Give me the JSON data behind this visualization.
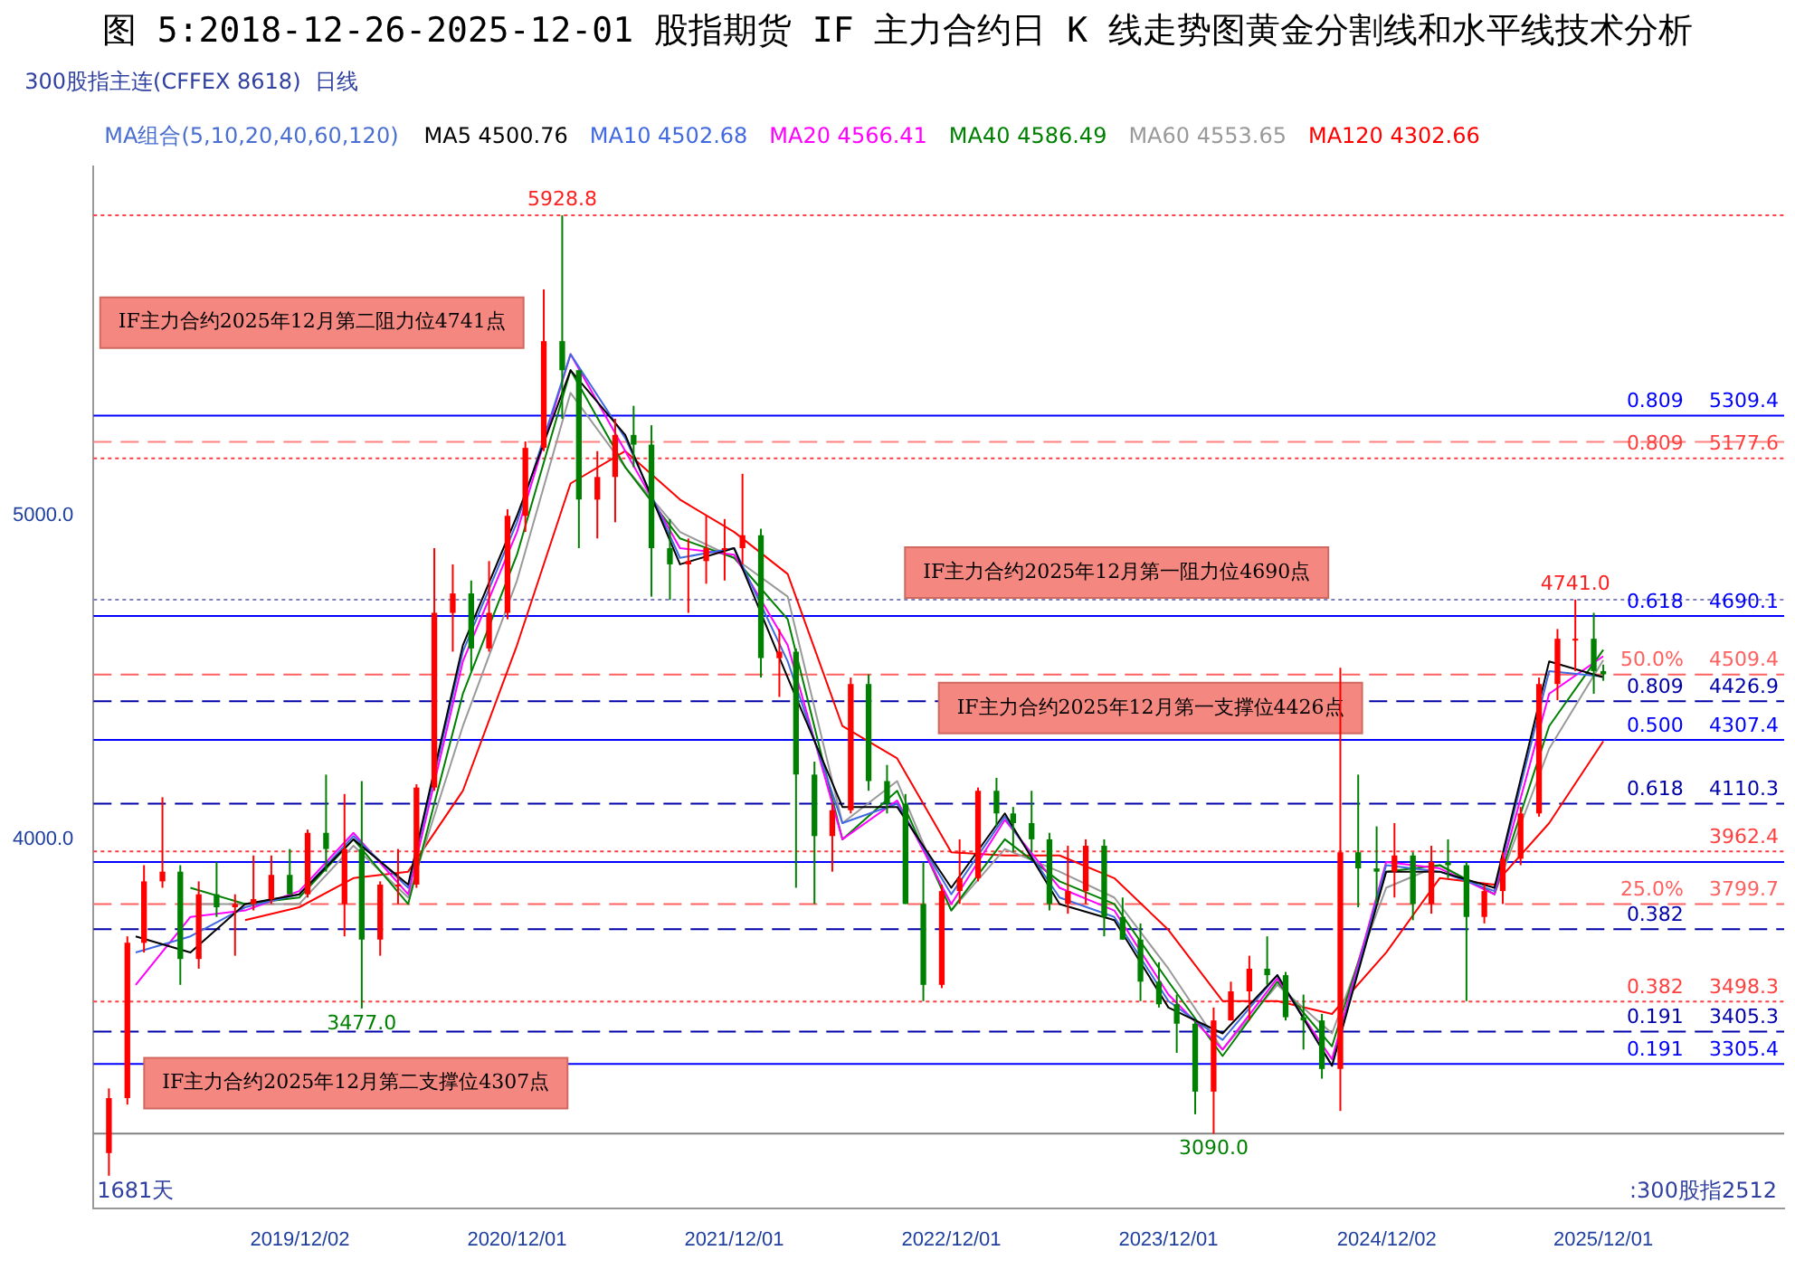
{
  "chart_data": {
    "type": "candlestick",
    "title": "图 5:2018-12-26-2025-12-01 股指期货 IF 主力合约日 K 线走势图黄金分割线和水平线技术分析",
    "legend_title": "MA组合(5,10,20,40,60,120)",
    "legend": "top",
    "marker": "none",
    "x": [
      "2019-01-15",
      "2019-02-15",
      "2019-03-15",
      "2019-04-15",
      "2019-05-15",
      "2019-06-15",
      "2019-07-15",
      "2019-08-15",
      "2019-09-15",
      "2019-10-15",
      "2019-11-15",
      "2019-12-15",
      "2020-01-15",
      "2020-02-15",
      "2020-03-15",
      "2020-04-15",
      "2020-05-15",
      "2020-06-15",
      "2020-07-15",
      "2020-08-15",
      "2020-09-15",
      "2020-10-15",
      "2020-11-15",
      "2020-12-15",
      "2021-01-15",
      "2021-02-15",
      "2021-03-15",
      "2021-04-15",
      "2021-05-15",
      "2021-06-15",
      "2021-07-15",
      "2021-08-15",
      "2021-09-15",
      "2021-10-15",
      "2021-11-15",
      "2021-12-15",
      "2022-01-15",
      "2022-02-15",
      "2022-03-15",
      "2022-04-15",
      "2022-05-15",
      "2022-06-15",
      "2022-07-15",
      "2022-08-15",
      "2022-09-15",
      "2022-10-15",
      "2022-11-15",
      "2022-12-15",
      "2023-01-15",
      "2023-02-15",
      "2023-03-15",
      "2023-04-15",
      "2023-05-15",
      "2023-06-15",
      "2023-07-15",
      "2023-08-15",
      "2023-09-15",
      "2023-10-15",
      "2023-11-15",
      "2023-12-15",
      "2024-01-15",
      "2024-02-15",
      "2024-03-15",
      "2024-04-15",
      "2024-05-15",
      "2024-06-15",
      "2024-07-15",
      "2024-08-15",
      "2024-09-15",
      "2024-10-15",
      "2024-11-15",
      "2024-12-15",
      "2025-01-15",
      "2025-02-15",
      "2025-03-15",
      "2025-04-15",
      "2025-05-15",
      "2025-06-15",
      "2025-07-15",
      "2025-08-15",
      "2025-09-15",
      "2025-10-15",
      "2025-11-15",
      "2025-12-01"
    ],
    "ohlc": [
      [
        3030,
        3230,
        2960,
        3200
      ],
      [
        3200,
        3700,
        3180,
        3680
      ],
      [
        3680,
        3920,
        3650,
        3870
      ],
      [
        3870,
        4130,
        3850,
        3900
      ],
      [
        3900,
        3920,
        3550,
        3630
      ],
      [
        3630,
        3870,
        3600,
        3830
      ],
      [
        3830,
        3930,
        3760,
        3790
      ],
      [
        3790,
        3830,
        3640,
        3800
      ],
      [
        3800,
        3950,
        3780,
        3815
      ],
      [
        3815,
        3950,
        3800,
        3890
      ],
      [
        3890,
        3970,
        3830,
        3830
      ],
      [
        3830,
        4030,
        3820,
        4020
      ],
      [
        4020,
        4200,
        3900,
        3970
      ],
      [
        3800,
        4140,
        3700,
        3970
      ],
      [
        3970,
        4180,
        3477,
        3690
      ],
      [
        3690,
        3870,
        3640,
        3860
      ],
      [
        3860,
        3970,
        3800,
        3860
      ],
      [
        3860,
        4170,
        3850,
        4160
      ],
      [
        4160,
        4900,
        4150,
        4700
      ],
      [
        4700,
        4850,
        4580,
        4760
      ],
      [
        4760,
        4800,
        4520,
        4590
      ],
      [
        4590,
        4860,
        4580,
        4700
      ],
      [
        4700,
        5020,
        4680,
        5000
      ],
      [
        5000,
        5230,
        4950,
        5210
      ],
      [
        5210,
        5700,
        5200,
        5540
      ],
      [
        5540,
        5928.8,
        5300,
        5450
      ],
      [
        5450,
        5450,
        4900,
        5050
      ],
      [
        5050,
        5200,
        4930,
        5120
      ],
      [
        5120,
        5300,
        4980,
        5250
      ],
      [
        5250,
        5340,
        5150,
        5220
      ],
      [
        5220,
        5280,
        4750,
        4900
      ],
      [
        4900,
        4990,
        4740,
        4850
      ],
      [
        4850,
        4930,
        4700,
        4860
      ],
      [
        4860,
        5000,
        4790,
        4900
      ],
      [
        4900,
        4990,
        4800,
        4900
      ],
      [
        4900,
        5130,
        4850,
        4940
      ],
      [
        4940,
        4960,
        4500,
        4560
      ],
      [
        4560,
        4650,
        4440,
        4580
      ],
      [
        4580,
        4590,
        3850,
        4200
      ],
      [
        4200,
        4240,
        3800,
        4010
      ],
      [
        4010,
        4110,
        3900,
        4090
      ],
      [
        4090,
        4500,
        4080,
        4480
      ],
      [
        4480,
        4510,
        4150,
        4180
      ],
      [
        4180,
        4230,
        4080,
        4110
      ],
      [
        4110,
        4140,
        3800,
        3800
      ],
      [
        3800,
        3930,
        3500,
        3550
      ],
      [
        3550,
        3860,
        3540,
        3840
      ],
      [
        3840,
        4000,
        3800,
        3880
      ],
      [
        3880,
        4160,
        3870,
        4150
      ],
      [
        4150,
        4190,
        4040,
        4080
      ],
      [
        4080,
        4100,
        3960,
        4050
      ],
      [
        4050,
        4150,
        3960,
        4000
      ],
      [
        4000,
        4020,
        3780,
        3800
      ],
      [
        3800,
        3980,
        3770,
        3840
      ],
      [
        3840,
        4000,
        3800,
        3980
      ],
      [
        3980,
        4000,
        3700,
        3760
      ],
      [
        3760,
        3820,
        3690,
        3690
      ],
      [
        3690,
        3740,
        3500,
        3560
      ],
      [
        3560,
        3620,
        3480,
        3490
      ],
      [
        3490,
        3520,
        3340,
        3430
      ],
      [
        3430,
        3440,
        3150,
        3220
      ],
      [
        3220,
        3480,
        3090,
        3440
      ],
      [
        3440,
        3560,
        3440,
        3530
      ],
      [
        3530,
        3640,
        3440,
        3600
      ],
      [
        3600,
        3700,
        3550,
        3580
      ],
      [
        3580,
        3590,
        3440,
        3450
      ],
      [
        3450,
        3520,
        3350,
        3440
      ],
      [
        3440,
        3460,
        3260,
        3290
      ],
      [
        3290,
        4530,
        3160,
        3960
      ],
      [
        3960,
        4200,
        3790,
        3910
      ],
      [
        3910,
        4040,
        3800,
        3900
      ],
      [
        3900,
        4050,
        3820,
        3950
      ],
      [
        3950,
        3960,
        3750,
        3800
      ],
      [
        3800,
        3980,
        3770,
        3930
      ],
      [
        3930,
        4000,
        3880,
        3920
      ],
      [
        3920,
        3930,
        3500,
        3760
      ],
      [
        3760,
        3860,
        3740,
        3840
      ],
      [
        3840,
        3960,
        3800,
        3940
      ],
      [
        3940,
        4100,
        3920,
        4080
      ],
      [
        4080,
        4500,
        4070,
        4480
      ],
      [
        4480,
        4650,
        4430,
        4620
      ],
      [
        4620,
        4741,
        4520,
        4620
      ],
      [
        4620,
        4700,
        4450,
        4520
      ],
      [
        4520,
        4540,
        4490,
        4510
      ]
    ],
    "colors": [
      "#ff0000",
      "#ff0000",
      "#ff0000",
      "#ff0000",
      "#008000",
      "#ff0000",
      "#008000",
      "#ff0000",
      "#ff0000",
      "#ff0000",
      "#008000",
      "#ff0000",
      "#008000",
      "#ff0000",
      "#008000",
      "#ff0000",
      "#ff0000",
      "#ff0000",
      "#ff0000",
      "#ff0000",
      "#008000",
      "#ff0000",
      "#ff0000",
      "#ff0000",
      "#ff0000",
      "#008000",
      "#008000",
      "#ff0000",
      "#ff0000",
      "#008000",
      "#008000",
      "#008000",
      "#ff0000",
      "#ff0000",
      "#ff0000",
      "#ff0000",
      "#008000",
      "#ff0000",
      "#008000",
      "#008000",
      "#ff0000",
      "#ff0000",
      "#008000",
      "#008000",
      "#008000",
      "#008000",
      "#ff0000",
      "#ff0000",
      "#ff0000",
      "#008000",
      "#008000",
      "#008000",
      "#008000",
      "#ff0000",
      "#ff0000",
      "#008000",
      "#008000",
      "#008000",
      "#008000",
      "#008000",
      "#008000",
      "#ff0000",
      "#ff0000",
      "#ff0000",
      "#008000",
      "#008000",
      "#008000",
      "#008000",
      "#ff0000",
      "#008000",
      "#008000",
      "#ff0000",
      "#008000",
      "#ff0000",
      "#008000",
      "#008000",
      "#ff0000",
      "#ff0000",
      "#ff0000",
      "#ff0000",
      "#ff0000",
      "#ff0000",
      "#008000",
      "#008000"
    ],
    "series": [
      {
        "type": "line",
        "name": "MA5 4500.76",
        "color": "#000000",
        "x": [
          "2019-03-01",
          "2019-06-01",
          "2019-09-01",
          "2019-12-01",
          "2020-03-01",
          "2020-06-01",
          "2020-09-01",
          "2020-12-01",
          "2021-03-01",
          "2021-06-01",
          "2021-09-01",
          "2021-12-01",
          "2022-03-01",
          "2022-06-01",
          "2022-09-01",
          "2022-12-01",
          "2023-03-01",
          "2023-06-01",
          "2023-09-01",
          "2023-12-01",
          "2024-03-01",
          "2024-06-01",
          "2024-09-01",
          "2024-12-01",
          "2025-03-01",
          "2025-06-01",
          "2025-09-01",
          "2025-12-01"
        ],
        "values": [
          3700,
          3650,
          3800,
          3830,
          4000,
          3860,
          4600,
          5000,
          5450,
          5250,
          4850,
          4900,
          4500,
          4100,
          4100,
          3850,
          4080,
          3800,
          3750,
          3480,
          3400,
          3580,
          3300,
          3900,
          3900,
          3850,
          4550,
          4501
        ]
      },
      {
        "type": "line",
        "name": "MA10 4502.68",
        "color": "#4169e1",
        "x": [
          "2019-03-01",
          "2019-06-01",
          "2019-09-01",
          "2019-12-01",
          "2020-03-01",
          "2020-06-01",
          "2020-09-01",
          "2020-12-01",
          "2021-03-01",
          "2021-06-01",
          "2021-09-01",
          "2021-12-01",
          "2022-03-01",
          "2022-06-01",
          "2022-09-01",
          "2022-12-01",
          "2023-03-01",
          "2023-06-01",
          "2023-09-01",
          "2023-12-01",
          "2024-03-01",
          "2024-06-01",
          "2024-09-01",
          "2024-12-01",
          "2025-03-01",
          "2025-06-01",
          "2025-09-01",
          "2025-12-01"
        ],
        "values": [
          3650,
          3700,
          3790,
          3830,
          4010,
          3850,
          4580,
          4980,
          5500,
          5240,
          4870,
          4900,
          4550,
          4050,
          4110,
          3830,
          4070,
          3820,
          3760,
          3500,
          3380,
          3580,
          3300,
          3920,
          3900,
          3840,
          4520,
          4503
        ]
      },
      {
        "type": "line",
        "name": "MA20 4566.41",
        "color": "#ff00ff",
        "x": [
          "2019-03-01",
          "2019-06-01",
          "2019-09-01",
          "2019-12-01",
          "2020-03-01",
          "2020-06-01",
          "2020-09-01",
          "2020-12-01",
          "2021-03-01",
          "2021-06-01",
          "2021-09-01",
          "2021-12-01",
          "2022-03-01",
          "2022-06-01",
          "2022-09-01",
          "2022-12-01",
          "2023-03-01",
          "2023-06-01",
          "2023-09-01",
          "2023-12-01",
          "2024-03-01",
          "2024-06-01",
          "2024-09-01",
          "2024-12-01",
          "2025-03-01",
          "2025-06-01",
          "2025-09-01",
          "2025-12-01"
        ],
        "values": [
          3550,
          3760,
          3780,
          3840,
          4020,
          3830,
          4550,
          4950,
          5500,
          5200,
          4900,
          4880,
          4600,
          4000,
          4120,
          3800,
          4060,
          3850,
          3780,
          3520,
          3350,
          3570,
          3320,
          3930,
          3910,
          3830,
          4450,
          4566
        ]
      },
      {
        "type": "line",
        "name": "MA40 4586.49",
        "color": "#008000",
        "x": [
          "2019-06-01",
          "2019-09-01",
          "2019-12-01",
          "2020-03-01",
          "2020-06-01",
          "2020-09-01",
          "2020-12-01",
          "2021-03-01",
          "2021-06-01",
          "2021-09-01",
          "2021-12-01",
          "2022-03-01",
          "2022-06-01",
          "2022-09-01",
          "2022-12-01",
          "2023-03-01",
          "2023-06-01",
          "2023-09-01",
          "2023-12-01",
          "2024-03-01",
          "2024-06-01",
          "2024-09-01",
          "2024-12-01",
          "2025-03-01",
          "2025-06-01",
          "2025-09-01",
          "2025-12-01"
        ],
        "values": [
          3850,
          3800,
          3820,
          4000,
          3800,
          4450,
          4880,
          5450,
          5150,
          4930,
          4870,
          4680,
          4000,
          4150,
          3780,
          4000,
          3870,
          3800,
          3560,
          3330,
          3560,
          3360,
          3900,
          3920,
          3830,
          4350,
          4586
        ]
      },
      {
        "type": "line",
        "name": "MA60 4553.65",
        "color": "#999999",
        "x": [
          "2019-06-01",
          "2019-09-01",
          "2019-12-01",
          "2020-03-01",
          "2020-06-01",
          "2020-09-01",
          "2020-12-01",
          "2021-03-01",
          "2021-06-01",
          "2021-09-01",
          "2021-12-01",
          "2022-03-01",
          "2022-06-01",
          "2022-09-01",
          "2022-12-01",
          "2023-03-01",
          "2023-06-01",
          "2023-09-01",
          "2023-12-01",
          "2024-03-01",
          "2024-06-01",
          "2024-09-01",
          "2024-12-01",
          "2025-03-01",
          "2025-06-01",
          "2025-09-01",
          "2025-12-01"
        ],
        "values": [
          3800,
          3800,
          3800,
          3980,
          3820,
          4350,
          4800,
          5380,
          5150,
          4950,
          4870,
          4750,
          4050,
          4180,
          3780,
          3970,
          3900,
          3820,
          3600,
          3350,
          3550,
          3400,
          3850,
          3920,
          3830,
          4280,
          4554
        ]
      },
      {
        "type": "line",
        "name": "MA120 4302.66",
        "color": "#ff0000",
        "x": [
          "2019-09-01",
          "2019-12-01",
          "2020-03-01",
          "2020-06-01",
          "2020-09-01",
          "2020-12-01",
          "2021-03-01",
          "2021-06-01",
          "2021-09-01",
          "2021-12-01",
          "2022-03-01",
          "2022-06-01",
          "2022-09-01",
          "2022-12-01",
          "2023-03-01",
          "2023-06-01",
          "2023-09-01",
          "2023-12-01",
          "2024-03-01",
          "2024-06-01",
          "2024-09-01",
          "2024-12-01",
          "2025-03-01",
          "2025-06-01",
          "2025-09-01",
          "2025-12-01"
        ],
        "values": [
          3750,
          3790,
          3880,
          3900,
          4150,
          4600,
          5100,
          5200,
          5050,
          4950,
          4820,
          4350,
          4250,
          3960,
          3950,
          3950,
          3880,
          3720,
          3500,
          3500,
          3460,
          3650,
          3880,
          3860,
          4050,
          4303
        ]
      }
    ],
    "xlim": [
      "2018-12-20",
      "2026-10-01"
    ],
    "xticks": [
      {
        "value": "2019-12-02",
        "label": "2019/12/02"
      },
      {
        "value": "2020-12-01",
        "label": "2020/12/01"
      },
      {
        "value": "2021-12-01",
        "label": "2021/12/01"
      },
      {
        "value": "2022-12-01",
        "label": "2022/12/01"
      },
      {
        "value": "2023-12-01",
        "label": "2023/12/01"
      },
      {
        "value": "2024-12-02",
        "label": "2024/12/02"
      },
      {
        "value": "2025-12-01",
        "label": "2025/12/01"
      }
    ],
    "ylim": [
      2860,
      6080
    ],
    "yticks": [
      {
        "value": 4000,
        "label": "4000.0"
      },
      {
        "value": 5000,
        "label": "5000.0"
      }
    ],
    "ref_lines": [
      {
        "axis": "y",
        "value": 5928.8,
        "label": null,
        "color": "#ff4040",
        "line_style": "dotted"
      },
      {
        "axis": "y",
        "value": 5309.4,
        "label": "5309.4",
        "color": "#0000ff",
        "line_style": "solid"
      },
      {
        "axis": "y",
        "value": 5228.8,
        "label": null,
        "color": "#ff8080",
        "line_style": "dashed"
      },
      {
        "axis": "y",
        "value": 5177.6,
        "label": "5177.6",
        "color": "#ff4040",
        "line_style": "dotted"
      },
      {
        "axis": "y",
        "value": 4741.0,
        "label": null,
        "color": "#8080c0",
        "line_style": "dotted"
      },
      {
        "axis": "y",
        "value": 4690.1,
        "label": "4690.1",
        "color": "#0000ff",
        "line_style": "solid"
      },
      {
        "axis": "y",
        "value": 4509.4,
        "label": "4509.4",
        "color": "#ff6060",
        "line_style": "dashed"
      },
      {
        "axis": "y",
        "value": 4426.9,
        "label": "4426.9",
        "color": "#0000aa",
        "line_style": "dashed"
      },
      {
        "axis": "y",
        "value": 4307.4,
        "label": "4307.4",
        "color": "#0000ff",
        "line_style": "solid"
      },
      {
        "axis": "y",
        "value": 4110.3,
        "label": "4110.3",
        "color": "#0000aa",
        "line_style": "dashed"
      },
      {
        "axis": "y",
        "value": 3962.4,
        "label": "3962.4",
        "color": "#ff4040",
        "line_style": "dotted"
      },
      {
        "axis": "y",
        "value": 3930,
        "label": null,
        "color": "#0000ff",
        "line_style": "solid"
      },
      {
        "axis": "y",
        "value": 3799.7,
        "label": "3799.7",
        "color": "#ff6060",
        "line_style": "dashed"
      },
      {
        "axis": "y",
        "value": 3722,
        "label": null,
        "color": "#0000aa",
        "line_style": "dashed"
      },
      {
        "axis": "y",
        "value": 3498.3,
        "label": "3498.3",
        "color": "#ff4040",
        "line_style": "dotted"
      },
      {
        "axis": "y",
        "value": 3405.3,
        "label": "3405.3",
        "color": "#0000aa",
        "line_style": "dashed"
      },
      {
        "axis": "y",
        "value": 3305.4,
        "label": "3305.4",
        "color": "#0000ff",
        "line_style": "solid"
      },
      {
        "axis": "y",
        "value": 3090.0,
        "label": null,
        "color": "#808080",
        "line_style": "solid"
      }
    ],
    "annotations": [
      "300股指主连(CFFEX 8618)  日线",
      "1681天",
      ":300股指2512",
      "IF主力合约2025年12月第二阻力位4741点",
      "IF主力合约2025年12月第一阻力位4690点",
      "IF主力合约2025年12月第二支撑位4307点",
      "IF主力合约2025年12月第一支撑位4426点",
      {
        "text": "5928.8",
        "x": "2021-02-15",
        "y": 5928.8
      },
      {
        "text": "4741.0",
        "x": "2025-10-15",
        "y": 4741.0
      },
      {
        "text": "3477.0",
        "x": "2020-03-15",
        "y": 3477.0
      },
      {
        "text": "3090.0",
        "x": "2024-02-15",
        "y": 3090.0
      },
      {
        "text": "0.809",
        "x": "2026-04-15",
        "y": 5309.4
      },
      {
        "text": "0.809",
        "x": "2026-04-15",
        "y": 5177.6
      },
      {
        "text": "0.618",
        "x": "2026-04-15",
        "y": 4690.1
      },
      {
        "text": "50.0%",
        "x": "2026-04-15",
        "y": 4509.4
      },
      {
        "text": "0.809",
        "x": "2026-04-15",
        "y": 4426.9
      },
      {
        "text": "0.500",
        "x": "2026-04-15",
        "y": 4307.4
      },
      {
        "text": "0.618",
        "x": "2026-04-15",
        "y": 4110.3
      },
      {
        "text": "25.0%",
        "x": "2026-04-15",
        "y": 3799.7
      },
      {
        "text": "0.382",
        "x": "2026-04-15",
        "y": 3722
      },
      {
        "text": "0.382",
        "x": "2026-04-15",
        "y": 3498.3
      },
      {
        "text": "0.191",
        "x": "2026-04-15",
        "y": 3405.3
      },
      {
        "text": "0.191",
        "x": "2026-04-15",
        "y": 3305.4
      }
    ]
  }
}
